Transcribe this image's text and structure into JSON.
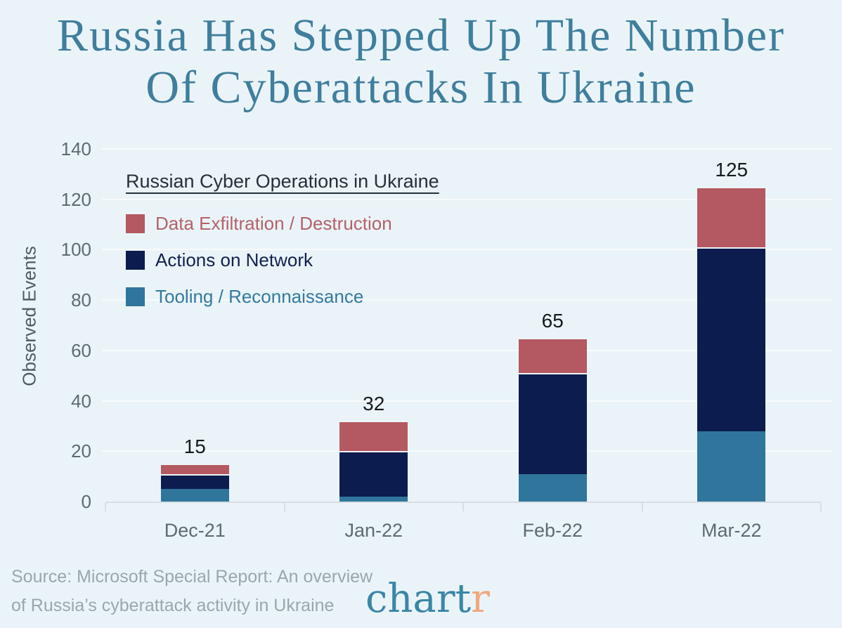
{
  "page": {
    "background": "#eaf4f8",
    "title_color": "#3f7e9d",
    "title_lines": [
      "Russia Has Stepped Up The Number",
      "Of Cyberattacks In Ukraine"
    ]
  },
  "chart_data": {
    "type": "bar",
    "stacked": true,
    "title": "Russian Cyber Operations in Ukraine",
    "ylabel": "Observed Events",
    "ylim": [
      0,
      140
    ],
    "yticks": [
      0,
      20,
      40,
      60,
      80,
      100,
      120,
      140
    ],
    "grid": true,
    "legend_position": "upper-left",
    "categories": [
      "Dec-21",
      "Jan-22",
      "Feb-22",
      "Mar-22"
    ],
    "series": [
      {
        "name": "Tooling / Reconnaissance",
        "color": "#2f759c",
        "text_color": "#35799f",
        "values": [
          5,
          2,
          11,
          28
        ]
      },
      {
        "name": "Actions on Network",
        "color": "#0d1c4e",
        "text_color": "#13204f",
        "values": [
          6,
          18,
          40,
          73
        ]
      },
      {
        "name": "Data Exfiltration / Destruction",
        "color": "#b45861",
        "text_color": "#b5616a",
        "values": [
          4,
          12,
          14,
          24
        ]
      }
    ],
    "totals": [
      15,
      32,
      65,
      125
    ]
  },
  "source": {
    "line1": "Source: Microsoft Special Report: An overview",
    "line2": "of Russia’s cyberattack activity in Ukraine"
  },
  "logo": {
    "part1": "chart",
    "part2": "r",
    "color1": "#3a86a8",
    "color2": "#f0a87c"
  }
}
